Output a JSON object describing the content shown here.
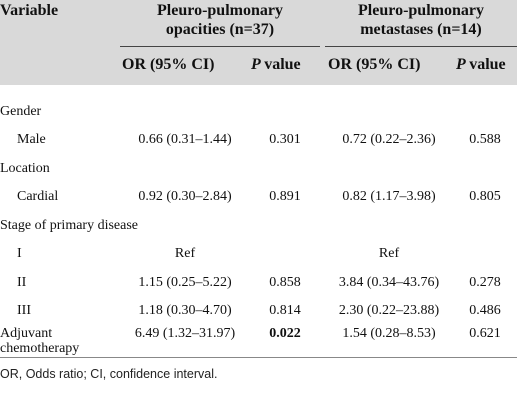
{
  "header": {
    "variable": "Variable",
    "group1_line1": "Pleuro-pulmonary",
    "group1_line2": "opacities (n=37)",
    "group2_line1": "Pleuro-pulmonary",
    "group2_line2": "metastases (n=14)",
    "or_label": "OR (95% CI)",
    "p_label": "P value"
  },
  "rows": [
    {
      "label": "Gender",
      "or1": "",
      "p1": "",
      "or2": "",
      "p2": ""
    },
    {
      "label": "Male",
      "or1": "0.66 (0.31–1.44)",
      "p1": "0.301",
      "or2": "0.72 (0.22–2.36)",
      "p2": "0.588"
    },
    {
      "label": "Location",
      "or1": "",
      "p1": "",
      "or2": "",
      "p2": ""
    },
    {
      "label": "Cardial",
      "or1": "0.92 (0.30–2.84)",
      "p1": "0.891",
      "or2": "0.82 (1.17–3.98)",
      "p2": "0.805"
    },
    {
      "label": "Stage of primary disease",
      "or1": "",
      "p1": "",
      "or2": "",
      "p2": ""
    },
    {
      "label": "I",
      "or1": "Ref",
      "p1": "",
      "or2": "Ref",
      "p2": ""
    },
    {
      "label": "II",
      "or1": "1.15 (0.25–5.22)",
      "p1": "0.858",
      "or2": "3.84 (0.34–43.76)",
      "p2": "0.278"
    },
    {
      "label": "III",
      "or1": "1.18 (0.30–4.70)",
      "p1": "0.814",
      "or2": "2.30 (0.22–23.88)",
      "p2": "0.486"
    },
    {
      "label_line1": "Adjuvant",
      "label_line2": "chemotherapy",
      "or1": "6.49 (1.32–31.97)",
      "p1": "0.022",
      "or2": "1.54 (0.28–8.53)",
      "p2": "0.621"
    }
  ],
  "footnote": "OR, Odds ratio; CI, confidence interval."
}
